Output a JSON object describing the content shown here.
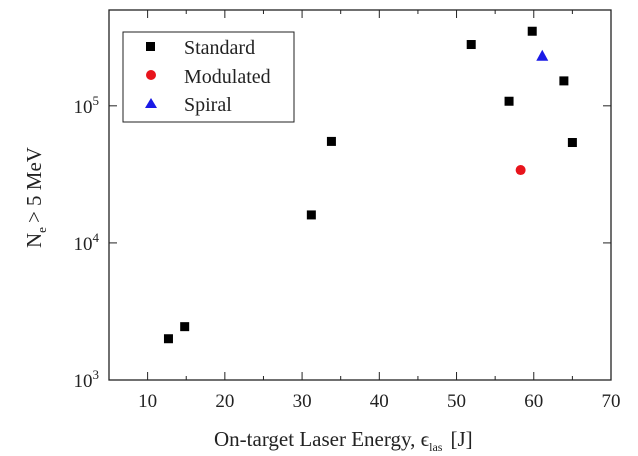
{
  "chart_data": {
    "type": "scatter",
    "xlabel": "On-target Laser Energy, ϵ",
    "xlabel_sub": "las",
    "xlabel_unit": "[J]",
    "ylabel": "N",
    "ylabel_sub": "e",
    "ylabel_rest": "> 5 MeV",
    "xlim": [
      5,
      70
    ],
    "ylim": [
      1000,
      500000
    ],
    "yscale": "log",
    "grid": false,
    "legend_position": "top-left",
    "x_ticks": [
      {
        "value": 10,
        "label": "10"
      },
      {
        "value": 20,
        "label": "20"
      },
      {
        "value": 30,
        "label": "30"
      },
      {
        "value": 40,
        "label": "40"
      },
      {
        "value": 50,
        "label": "50"
      },
      {
        "value": 60,
        "label": "60"
      },
      {
        "value": 70,
        "label": "70"
      }
    ],
    "y_ticks": [
      {
        "value": 1000,
        "base": "10",
        "exp": "3"
      },
      {
        "value": 10000,
        "base": "10",
        "exp": "4"
      },
      {
        "value": 100000,
        "base": "10",
        "exp": "5"
      }
    ],
    "series": [
      {
        "name": "Standard",
        "marker": "square",
        "color": "#000000",
        "points": [
          {
            "x": 12.7,
            "y": 2000
          },
          {
            "x": 14.8,
            "y": 2450
          },
          {
            "x": 31.2,
            "y": 16000
          },
          {
            "x": 33.8,
            "y": 55000
          },
          {
            "x": 51.9,
            "y": 280000
          },
          {
            "x": 56.8,
            "y": 108000
          },
          {
            "x": 59.8,
            "y": 350000
          },
          {
            "x": 63.9,
            "y": 152000
          },
          {
            "x": 65.0,
            "y": 54000
          }
        ]
      },
      {
        "name": "Modulated",
        "marker": "circle",
        "color": "#e8141c",
        "points": [
          {
            "x": 58.3,
            "y": 34000
          }
        ]
      },
      {
        "name": "Spiral",
        "marker": "triangle",
        "color": "#1a1ae6",
        "points": [
          {
            "x": 61.1,
            "y": 232000
          }
        ]
      }
    ]
  }
}
